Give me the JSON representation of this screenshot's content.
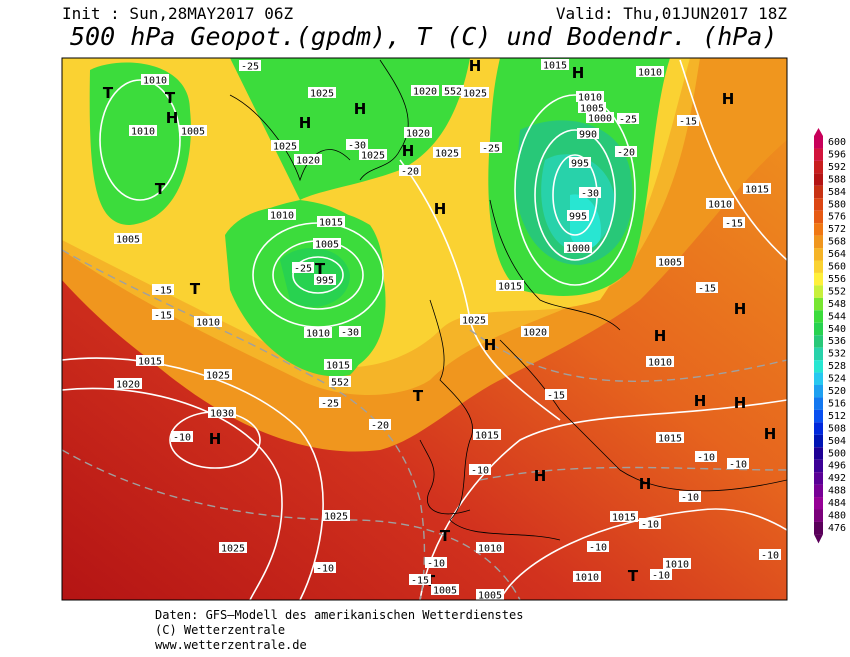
{
  "header": {
    "init": "Init : Sun,28MAY2017 06Z",
    "valid": "Valid: Thu,01JUN2017 18Z",
    "title": "500 hPa Geopot.(gpdm), T (C) und Bodendr. (hPa)"
  },
  "colorbar": {
    "ticks": [
      "600",
      "596",
      "592",
      "588",
      "584",
      "580",
      "576",
      "572",
      "568",
      "564",
      "560",
      "556",
      "552",
      "548",
      "544",
      "540",
      "536",
      "532",
      "528",
      "524",
      "520",
      "516",
      "512",
      "508",
      "504",
      "500",
      "496",
      "492",
      "488",
      "484",
      "480",
      "476"
    ],
    "colors": [
      "#c8005a",
      "#d2143c",
      "#c81e1e",
      "#b41414",
      "#c83214",
      "#dc4614",
      "#e65a14",
      "#f07814",
      "#f0961e",
      "#f5b428",
      "#fad232",
      "#fff03c",
      "#c8f03c",
      "#78e632",
      "#3cdc3c",
      "#28d250",
      "#28c878",
      "#28d2aa",
      "#28e6d2",
      "#28c8f0",
      "#1ea0f0",
      "#1478f0",
      "#0a50f0",
      "#0028dc",
      "#0014b4",
      "#1e0096",
      "#3c0096",
      "#5a0096",
      "#780096",
      "#960096",
      "#7a007a",
      "#5a005a"
    ]
  },
  "map_labels": [
    "1010",
    "T",
    "T",
    "H",
    "1010",
    "1005",
    "T",
    "1005",
    "T",
    "1010",
    "-15",
    "1015",
    "1020",
    "1025",
    "1030",
    "H",
    "-10",
    "-25",
    "1025",
    "H",
    "H",
    "1025",
    "1020",
    "-30",
    "1025",
    "-20",
    "1020",
    "1025",
    "H",
    "H",
    "1010",
    "1015",
    "1005",
    "T",
    "995",
    "-25",
    "1010",
    "-30",
    "1015",
    "552",
    "-25",
    "T",
    "-20",
    "H",
    "1015",
    "H",
    "1010",
    "1020",
    "552",
    "1025",
    "1010",
    "1005",
    "1000",
    "-25",
    "990",
    "995",
    "-20",
    "-30",
    "995",
    "1000",
    "-25",
    "1015",
    "1025",
    "1020",
    "H",
    "H",
    "-15",
    "1015",
    "1010",
    "-15",
    "1005",
    "-15",
    "H",
    "H",
    "1010",
    "1015",
    "-10",
    "H",
    "H",
    "1015",
    "-10",
    "-10",
    "H",
    "H",
    "H",
    "-15",
    "1025",
    "-10",
    "T",
    "1010",
    "T",
    "-10",
    "1005",
    "1005",
    "1010",
    "T",
    "-10",
    "1010",
    "-10",
    "1015",
    "-10",
    "-10",
    "-10",
    "1025",
    "-15",
    "-15"
  ],
  "footer": [
    "Daten: GFS–Modell des amerikanischen Wetterdienstes",
    "(C) Wetterzentrale",
    "www.wetterzentrale.de"
  ]
}
